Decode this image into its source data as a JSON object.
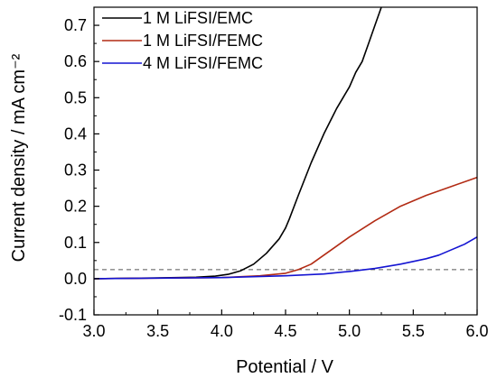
{
  "chart_data": {
    "type": "line",
    "title": "",
    "xlabel": "Potential / V",
    "ylabel": "Current density / mA cm⁻²",
    "xlim": [
      3.0,
      6.0
    ],
    "ylim": [
      -0.1,
      0.75
    ],
    "x_ticks": [
      "3.0",
      "3.5",
      "4.0",
      "4.5",
      "5.0",
      "5.5",
      "6.0"
    ],
    "y_ticks": [
      "-0.1",
      "0.0",
      "0.1",
      "0.2",
      "0.3",
      "0.4",
      "0.5",
      "0.6",
      "0.7"
    ],
    "grid": false,
    "legend_position": "top-left",
    "reference_line": {
      "y": 0.025,
      "style": "dashed",
      "color": "#555555"
    },
    "series": [
      {
        "name": "1 M LiFSI/EMC",
        "color": "#000000",
        "points": [
          [
            3.0,
            0.0
          ],
          [
            3.5,
            0.002
          ],
          [
            3.8,
            0.004
          ],
          [
            3.95,
            0.007
          ],
          [
            4.05,
            0.012
          ],
          [
            4.15,
            0.022
          ],
          [
            4.25,
            0.04
          ],
          [
            4.35,
            0.07
          ],
          [
            4.45,
            0.11
          ],
          [
            4.5,
            0.14
          ],
          [
            4.53,
            0.165
          ],
          [
            4.6,
            0.23
          ],
          [
            4.7,
            0.32
          ],
          [
            4.8,
            0.4
          ],
          [
            4.9,
            0.47
          ],
          [
            5.0,
            0.53
          ],
          [
            5.05,
            0.57
          ],
          [
            5.1,
            0.6
          ],
          [
            5.15,
            0.65
          ],
          [
            5.2,
            0.7
          ],
          [
            5.25,
            0.75
          ]
        ]
      },
      {
        "name": "1 M LiFSI/FEMC",
        "color": "#b22b14",
        "points": [
          [
            3.0,
            0.0
          ],
          [
            4.0,
            0.003
          ],
          [
            4.3,
            0.008
          ],
          [
            4.5,
            0.015
          ],
          [
            4.6,
            0.025
          ],
          [
            4.7,
            0.04
          ],
          [
            4.8,
            0.065
          ],
          [
            4.9,
            0.09
          ],
          [
            5.0,
            0.115
          ],
          [
            5.2,
            0.16
          ],
          [
            5.4,
            0.2
          ],
          [
            5.6,
            0.23
          ],
          [
            5.8,
            0.255
          ],
          [
            6.0,
            0.28
          ]
        ]
      },
      {
        "name": "4 M LiFSI/FEMC",
        "color": "#1414d2",
        "points": [
          [
            3.0,
            0.0
          ],
          [
            4.0,
            0.003
          ],
          [
            4.5,
            0.008
          ],
          [
            4.8,
            0.013
          ],
          [
            5.0,
            0.02
          ],
          [
            5.2,
            0.028
          ],
          [
            5.4,
            0.04
          ],
          [
            5.6,
            0.055
          ],
          [
            5.7,
            0.065
          ],
          [
            5.8,
            0.08
          ],
          [
            5.9,
            0.095
          ],
          [
            6.0,
            0.115
          ]
        ]
      }
    ]
  }
}
